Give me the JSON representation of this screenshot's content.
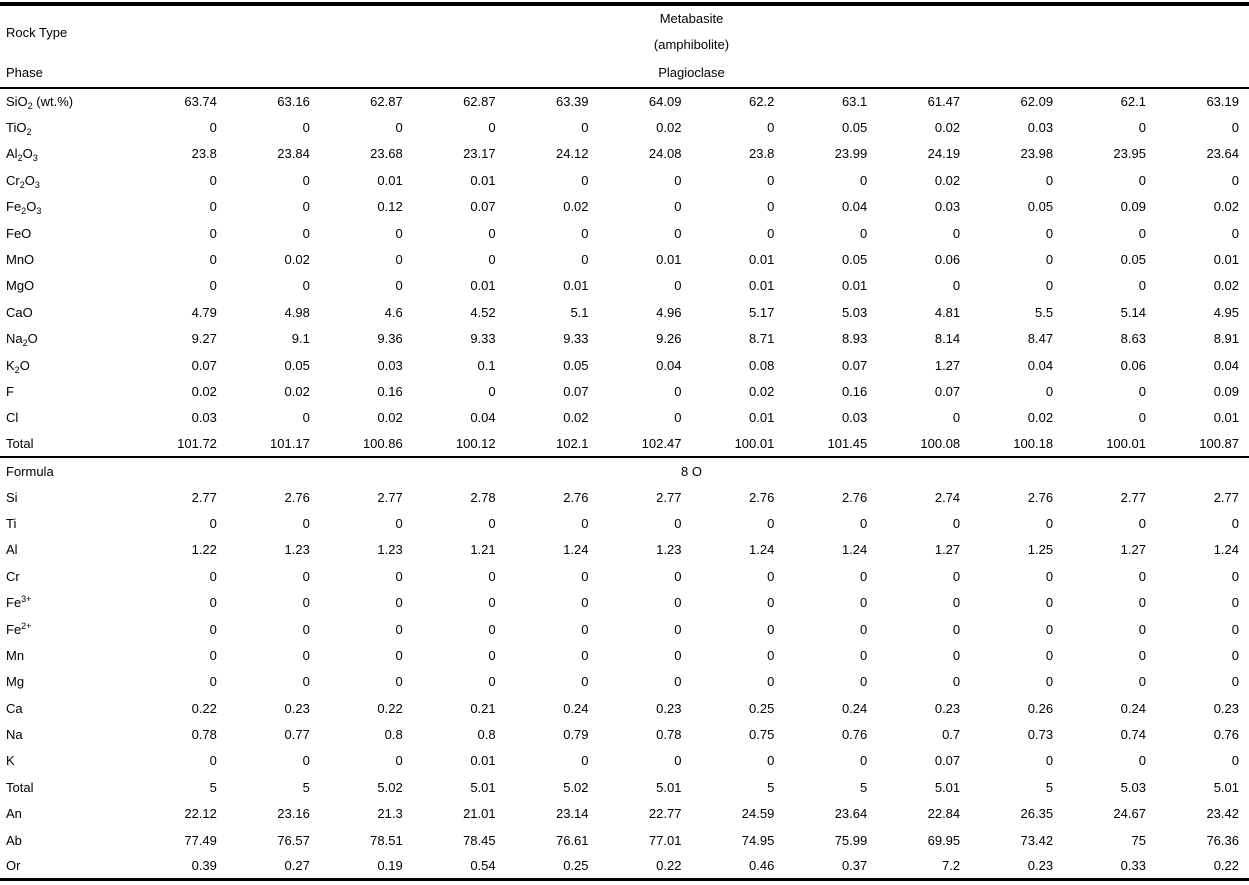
{
  "page": {
    "background_color": "#ffffff",
    "text_color": "#000000",
    "rule_color": "#000000"
  },
  "header": {
    "rock_type_label": "Rock Type",
    "rock_type": "Metabasite",
    "rock_type_detail": "(amphibolite)",
    "phase_label": "Phase",
    "phase": "Plagioclase"
  },
  "oxide_section": {
    "rows": [
      {
        "name": "SiO2",
        "label_parts": [
          {
            "t": "SiO"
          },
          {
            "sub": "2"
          },
          {
            "t": " (wt.%)"
          }
        ],
        "values": [
          63.74,
          63.16,
          62.87,
          62.87,
          63.39,
          64.09,
          62.2,
          63.1,
          61.47,
          62.09,
          62.1,
          63.19
        ]
      },
      {
        "name": "TiO2",
        "label_parts": [
          {
            "t": "TiO"
          },
          {
            "sub": "2"
          }
        ],
        "values": [
          0,
          0,
          0,
          0,
          0,
          0.02,
          0,
          0.05,
          0.02,
          0.03,
          0,
          0
        ]
      },
      {
        "name": "Al2O3",
        "label_parts": [
          {
            "t": "Al"
          },
          {
            "sub": "2"
          },
          {
            "t": "O"
          },
          {
            "sub": "3"
          }
        ],
        "values": [
          23.8,
          23.84,
          23.68,
          23.17,
          24.12,
          24.08,
          23.8,
          23.99,
          24.19,
          23.98,
          23.95,
          23.64
        ]
      },
      {
        "name": "Cr2O3",
        "label_parts": [
          {
            "t": "Cr"
          },
          {
            "sub": "2"
          },
          {
            "t": "O"
          },
          {
            "sub": "3"
          }
        ],
        "values": [
          0,
          0,
          0.01,
          0.01,
          0,
          0,
          0,
          0,
          0.02,
          0,
          0,
          0
        ]
      },
      {
        "name": "Fe2O3",
        "label_parts": [
          {
            "t": "Fe"
          },
          {
            "sub": "2"
          },
          {
            "t": "O"
          },
          {
            "sub": "3"
          }
        ],
        "values": [
          0,
          0,
          0.12,
          0.07,
          0.02,
          0,
          0,
          0.04,
          0.03,
          0.05,
          0.09,
          0.02
        ]
      },
      {
        "name": "FeO",
        "label_parts": [
          {
            "t": "FeO"
          }
        ],
        "values": [
          0,
          0,
          0,
          0,
          0,
          0,
          0,
          0,
          0,
          0,
          0,
          0
        ]
      },
      {
        "name": "MnO",
        "label_parts": [
          {
            "t": "MnO"
          }
        ],
        "values": [
          0,
          0.02,
          0,
          0,
          0,
          0.01,
          0.01,
          0.05,
          0.06,
          0,
          0.05,
          0.01
        ]
      },
      {
        "name": "MgO",
        "label_parts": [
          {
            "t": "MgO"
          }
        ],
        "values": [
          0,
          0,
          0,
          0.01,
          0.01,
          0,
          0.01,
          0.01,
          0,
          0,
          0,
          0.02
        ]
      },
      {
        "name": "CaO",
        "label_parts": [
          {
            "t": "CaO"
          }
        ],
        "values": [
          4.79,
          4.98,
          4.6,
          4.52,
          5.1,
          4.96,
          5.17,
          5.03,
          4.81,
          5.5,
          5.14,
          4.95
        ]
      },
      {
        "name": "Na2O",
        "label_parts": [
          {
            "t": "Na"
          },
          {
            "sub": "2"
          },
          {
            "t": "O"
          }
        ],
        "values": [
          9.27,
          9.1,
          9.36,
          9.33,
          9.33,
          9.26,
          8.71,
          8.93,
          8.14,
          8.47,
          8.63,
          8.91
        ]
      },
      {
        "name": "K2O",
        "label_parts": [
          {
            "t": "K"
          },
          {
            "sub": "2"
          },
          {
            "t": "O"
          }
        ],
        "values": [
          0.07,
          0.05,
          0.03,
          0.1,
          0.05,
          0.04,
          0.08,
          0.07,
          1.27,
          0.04,
          0.06,
          0.04
        ]
      },
      {
        "name": "F",
        "label_parts": [
          {
            "t": "F"
          }
        ],
        "values": [
          0.02,
          0.02,
          0.16,
          0,
          0.07,
          0,
          0.02,
          0.16,
          0.07,
          0,
          0,
          0.09
        ]
      },
      {
        "name": "Cl",
        "label_parts": [
          {
            "t": "Cl"
          }
        ],
        "values": [
          0.03,
          0,
          0.02,
          0.04,
          0.02,
          0,
          0.01,
          0.03,
          0,
          0.02,
          0,
          0.01
        ]
      },
      {
        "name": "Total",
        "label_parts": [
          {
            "t": "Total"
          }
        ],
        "values": [
          101.72,
          101.17,
          100.86,
          100.12,
          102.1,
          102.47,
          100.01,
          101.45,
          100.08,
          100.18,
          100.01,
          100.87
        ]
      }
    ]
  },
  "formula_section": {
    "label": "Formula",
    "oxygen_basis": "8 O",
    "rows": [
      {
        "name": "Si",
        "label_parts": [
          {
            "t": "Si"
          }
        ],
        "values": [
          2.77,
          2.76,
          2.77,
          2.78,
          2.76,
          2.77,
          2.76,
          2.76,
          2.74,
          2.76,
          2.77,
          2.77
        ]
      },
      {
        "name": "Ti",
        "label_parts": [
          {
            "t": "Ti"
          }
        ],
        "values": [
          0,
          0,
          0,
          0,
          0,
          0,
          0,
          0,
          0,
          0,
          0,
          0
        ]
      },
      {
        "name": "Al",
        "label_parts": [
          {
            "t": "Al"
          }
        ],
        "values": [
          1.22,
          1.23,
          1.23,
          1.21,
          1.24,
          1.23,
          1.24,
          1.24,
          1.27,
          1.25,
          1.27,
          1.24
        ]
      },
      {
        "name": "Cr",
        "label_parts": [
          {
            "t": "Cr"
          }
        ],
        "values": [
          0,
          0,
          0,
          0,
          0,
          0,
          0,
          0,
          0,
          0,
          0,
          0
        ]
      },
      {
        "name": "Fe3",
        "label_parts": [
          {
            "t": "Fe"
          },
          {
            "sup": "3+"
          }
        ],
        "values": [
          0,
          0,
          0,
          0,
          0,
          0,
          0,
          0,
          0,
          0,
          0,
          0
        ]
      },
      {
        "name": "Fe2",
        "label_parts": [
          {
            "t": "Fe"
          },
          {
            "sup": "2+"
          }
        ],
        "values": [
          0,
          0,
          0,
          0,
          0,
          0,
          0,
          0,
          0,
          0,
          0,
          0
        ]
      },
      {
        "name": "Mn",
        "label_parts": [
          {
            "t": "Mn"
          }
        ],
        "values": [
          0,
          0,
          0,
          0,
          0,
          0,
          0,
          0,
          0,
          0,
          0,
          0
        ]
      },
      {
        "name": "Mg",
        "label_parts": [
          {
            "t": "Mg"
          }
        ],
        "values": [
          0,
          0,
          0,
          0,
          0,
          0,
          0,
          0,
          0,
          0,
          0,
          0
        ]
      },
      {
        "name": "Ca",
        "label_parts": [
          {
            "t": "Ca"
          }
        ],
        "values": [
          0.22,
          0.23,
          0.22,
          0.21,
          0.24,
          0.23,
          0.25,
          0.24,
          0.23,
          0.26,
          0.24,
          0.23
        ]
      },
      {
        "name": "Na",
        "label_parts": [
          {
            "t": "Na"
          }
        ],
        "values": [
          0.78,
          0.77,
          0.8,
          0.8,
          0.79,
          0.78,
          0.75,
          0.76,
          0.7,
          0.73,
          0.74,
          0.76
        ]
      },
      {
        "name": "K",
        "label_parts": [
          {
            "t": "K"
          }
        ],
        "values": [
          0,
          0,
          0,
          0.01,
          0,
          0,
          0,
          0,
          0.07,
          0,
          0,
          0
        ]
      },
      {
        "name": "Total",
        "label_parts": [
          {
            "t": "Total"
          }
        ],
        "values": [
          5,
          5,
          5.02,
          5.01,
          5.02,
          5.01,
          5,
          5,
          5.01,
          5,
          5.03,
          5.01
        ]
      },
      {
        "name": "An",
        "label_parts": [
          {
            "t": "An"
          }
        ],
        "values": [
          22.12,
          23.16,
          21.3,
          21.01,
          23.14,
          22.77,
          24.59,
          23.64,
          22.84,
          26.35,
          24.67,
          23.42
        ]
      },
      {
        "name": "Ab",
        "label_parts": [
          {
            "t": "Ab"
          }
        ],
        "values": [
          77.49,
          76.57,
          78.51,
          78.45,
          76.61,
          77.01,
          74.95,
          75.99,
          69.95,
          73.42,
          75,
          76.36
        ]
      },
      {
        "name": "Or",
        "label_parts": [
          {
            "t": "Or"
          }
        ],
        "values": [
          0.39,
          0.27,
          0.19,
          0.54,
          0.25,
          0.22,
          0.46,
          0.37,
          7.2,
          0.23,
          0.33,
          0.22
        ]
      }
    ]
  }
}
